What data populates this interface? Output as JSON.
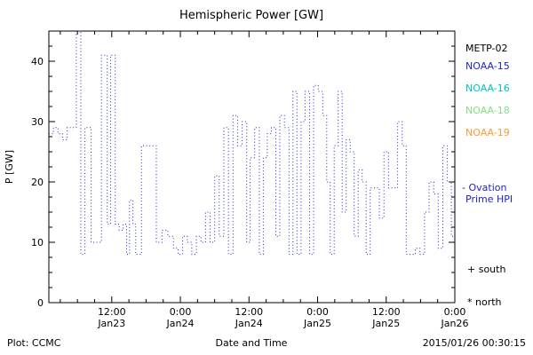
{
  "footer": {
    "left": "Plot: CCMC",
    "right": "2015/01/26 00:30:15"
  },
  "legend": {
    "satellites": [
      {
        "label": "METP-02",
        "color": "#000000"
      },
      {
        "label": "NOAA-15",
        "color": "#2222cc"
      },
      {
        "label": "NOAA-16",
        "color": "#00c2c2"
      },
      {
        "label": "NOAA-18",
        "color": "#86dc86"
      },
      {
        "label": "NOAA-19",
        "color": "#ff9933"
      }
    ],
    "ovation": {
      "line1": "- Ovation",
      "line2": "Prime HPI",
      "color": "#2222cc"
    },
    "markers": [
      {
        "label": "+ south",
        "color": "#000000"
      },
      {
        "label": "* north",
        "color": "#000000"
      }
    ]
  },
  "chart_data": {
    "type": "line",
    "title": "Hemispheric Power [GW]",
    "xlabel": "Date and Time",
    "ylabel": "P [GW]",
    "ylim": [
      0,
      45
    ],
    "yticks": [
      0,
      10,
      20,
      30,
      40
    ],
    "y_minor_step": 2.5,
    "x_hours_range": [
      1,
      72
    ],
    "x_minor_step": 3,
    "xticks": [
      {
        "hours": 12,
        "time": "12:00",
        "date": "Jan23"
      },
      {
        "hours": 24,
        "time": "0:00",
        "date": "Jan24"
      },
      {
        "hours": 36,
        "time": "12:00",
        "date": "Jan24"
      },
      {
        "hours": 48,
        "time": "0:00",
        "date": "Jan25"
      },
      {
        "hours": 60,
        "time": "12:00",
        "date": "Jan25"
      },
      {
        "hours": 72,
        "time": "0:00",
        "date": "Jan26"
      }
    ],
    "grid": false,
    "legend_position": "right-outside",
    "series": [
      {
        "name": "NOAA-15 Ovation Prime HPI",
        "color": "#2222cc",
        "style": "dotted-step",
        "points": [
          [
            1.0,
            28
          ],
          [
            1.8,
            29
          ],
          [
            2.6,
            28
          ],
          [
            3.4,
            27
          ],
          [
            4.2,
            29
          ],
          [
            5.8,
            45
          ],
          [
            6.6,
            8
          ],
          [
            7.3,
            29
          ],
          [
            8.4,
            10
          ],
          [
            10.2,
            41
          ],
          [
            11.2,
            13
          ],
          [
            11.8,
            41
          ],
          [
            12.6,
            13
          ],
          [
            13.3,
            12
          ],
          [
            14.0,
            13
          ],
          [
            14.6,
            8
          ],
          [
            15.1,
            17
          ],
          [
            15.7,
            13
          ],
          [
            16.2,
            8
          ],
          [
            17.2,
            26
          ],
          [
            19.0,
            26
          ],
          [
            19.8,
            10
          ],
          [
            20.8,
            12
          ],
          [
            21.8,
            11
          ],
          [
            22.8,
            9
          ],
          [
            23.6,
            8
          ],
          [
            24.4,
            11
          ],
          [
            25.2,
            10
          ],
          [
            26.0,
            8
          ],
          [
            26.8,
            11
          ],
          [
            27.6,
            10
          ],
          [
            28.4,
            15
          ],
          [
            29.2,
            10
          ],
          [
            30.0,
            21
          ],
          [
            30.8,
            11
          ],
          [
            31.6,
            29
          ],
          [
            32.4,
            8
          ],
          [
            33.2,
            31
          ],
          [
            34.0,
            26
          ],
          [
            34.8,
            30
          ],
          [
            35.6,
            10
          ],
          [
            36.2,
            24
          ],
          [
            37.0,
            29
          ],
          [
            37.8,
            8
          ],
          [
            38.5,
            24
          ],
          [
            39.2,
            28
          ],
          [
            39.9,
            29
          ],
          [
            40.7,
            11
          ],
          [
            41.4,
            31
          ],
          [
            42.2,
            29
          ],
          [
            43.0,
            8
          ],
          [
            43.7,
            35
          ],
          [
            44.4,
            8
          ],
          [
            45.1,
            30
          ],
          [
            45.8,
            35
          ],
          [
            46.6,
            8
          ],
          [
            47.3,
            36
          ],
          [
            48.1,
            35
          ],
          [
            48.9,
            31
          ],
          [
            49.6,
            20
          ],
          [
            50.2,
            8
          ],
          [
            50.9,
            26
          ],
          [
            51.6,
            35
          ],
          [
            52.3,
            15
          ],
          [
            53.0,
            27
          ],
          [
            53.7,
            25
          ],
          [
            54.4,
            11
          ],
          [
            55.1,
            22
          ],
          [
            55.8,
            20
          ],
          [
            56.5,
            8
          ],
          [
            57.2,
            19
          ],
          [
            58.0,
            19
          ],
          [
            58.8,
            14
          ],
          [
            59.6,
            25
          ],
          [
            60.4,
            19
          ],
          [
            61.2,
            19
          ],
          [
            62.0,
            30
          ],
          [
            62.8,
            26
          ],
          [
            63.5,
            8
          ],
          [
            64.3,
            8
          ],
          [
            65.1,
            9
          ],
          [
            65.9,
            8
          ],
          [
            66.7,
            15
          ],
          [
            67.5,
            20
          ],
          [
            68.3,
            18
          ],
          [
            69.1,
            9
          ],
          [
            69.9,
            26
          ],
          [
            70.7,
            20
          ],
          [
            71.4,
            11
          ],
          [
            72.0,
            11
          ]
        ]
      }
    ]
  }
}
